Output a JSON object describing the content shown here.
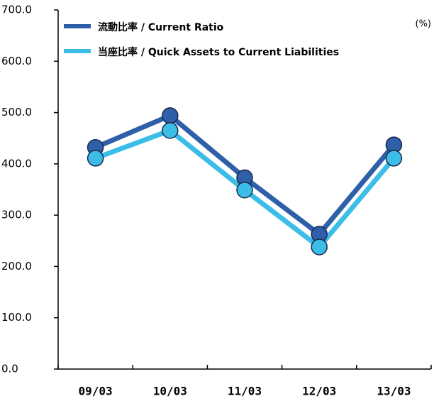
{
  "chart_data": {
    "type": "line",
    "unit": "(%)",
    "categories": [
      "09/03",
      "10/03",
      "11/03",
      "12/03",
      "13/03"
    ],
    "series": [
      {
        "name": "流動比率 / Current Ratio",
        "color": "#2e5fa8",
        "values": [
          432,
          494,
          373,
          263,
          437
        ]
      },
      {
        "name": "当座比率 / Quick Assets to Current Liabilities",
        "color": "#3bbde8",
        "values": [
          411,
          465,
          349,
          238,
          411
        ]
      }
    ],
    "ylim": [
      0,
      700
    ],
    "yticks": [
      {
        "value": 0,
        "label": "0.0"
      },
      {
        "value": 100,
        "label": "100.0"
      },
      {
        "value": 200,
        "label": "200.0"
      },
      {
        "value": 300,
        "label": "300.0"
      },
      {
        "value": 400,
        "label": "400.0"
      },
      {
        "value": 500,
        "label": "500.0"
      },
      {
        "value": 600,
        "label": "600.0"
      },
      {
        "value": 700,
        "label": "700.0"
      }
    ],
    "legend": "top-left"
  }
}
